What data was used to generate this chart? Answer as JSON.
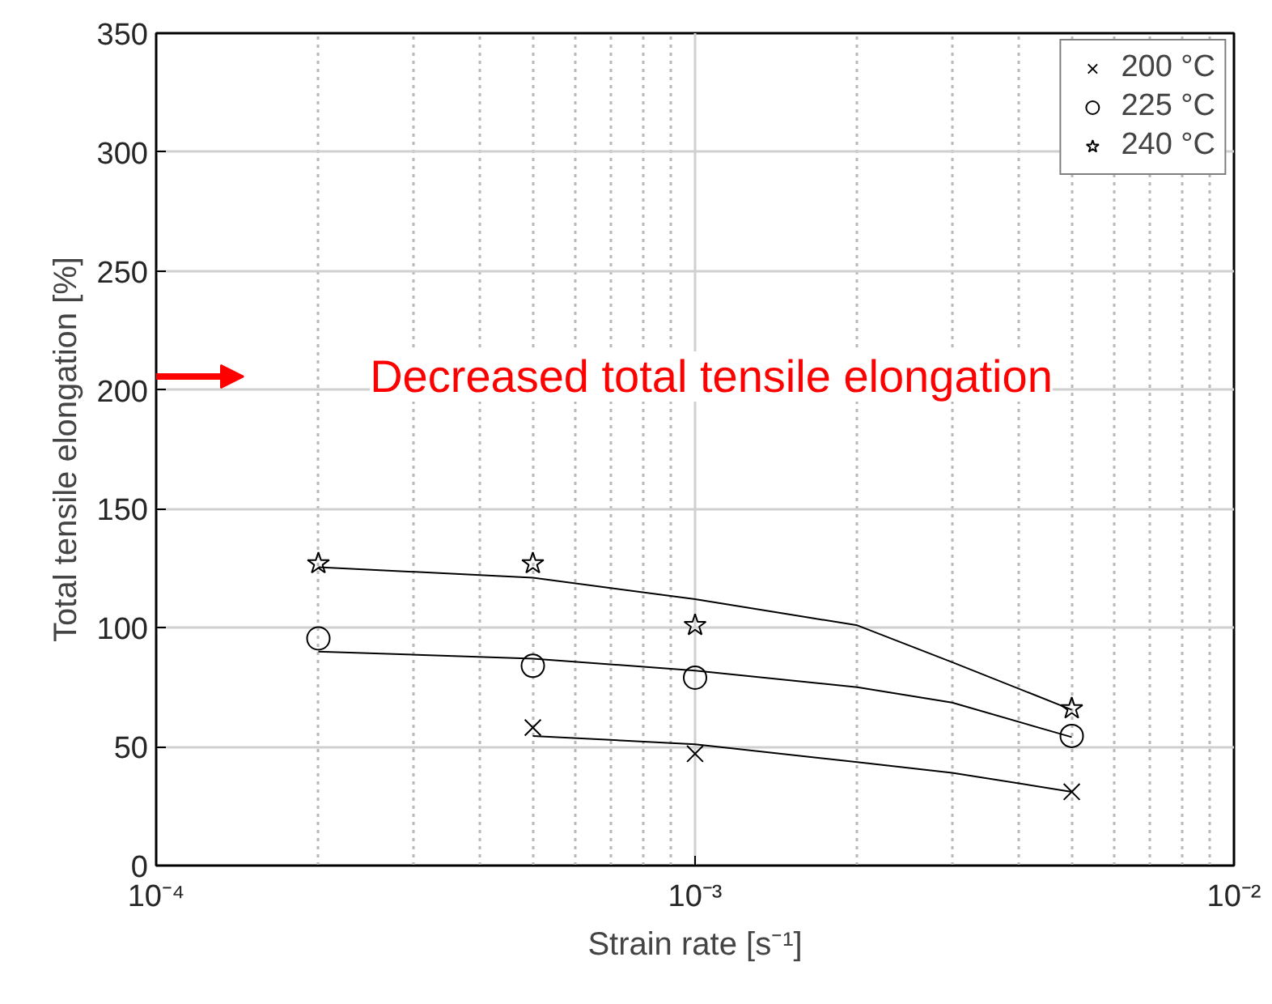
{
  "chart_data": {
    "type": "scatter",
    "xlabel": "Strain rate [s⁻¹]",
    "ylabel": "Total tensile elongation [%]",
    "log": "x",
    "grid": true,
    "legend": "top right",
    "xlim": [
      0.0001,
      0.01
    ],
    "xticks": [
      {
        "value": 0.0001,
        "label": "10⁻⁴"
      },
      {
        "value": 0.001,
        "label": "10⁻³"
      },
      {
        "value": 0.01,
        "label": "10⁻²"
      }
    ],
    "ylim": [
      0,
      350
    ],
    "yticks": [
      0,
      50,
      100,
      150,
      200,
      250,
      300,
      350
    ],
    "annotations": [
      "Decreased total tensile elongation"
    ],
    "series": [
      {
        "name": "200 °C",
        "color": "#000000",
        "marker": "cross",
        "x": [
          0.0005,
          0.001,
          0.005
        ],
        "values": [
          58,
          47,
          31
        ]
      },
      {
        "name": "225 °C",
        "color": "#000000",
        "marker": "circle",
        "x": [
          0.0002,
          0.0005,
          0.001,
          0.005
        ],
        "values": [
          95.5,
          84,
          79,
          54.5
        ]
      },
      {
        "name": "240 °C",
        "color": "#000000",
        "marker": "star",
        "x": [
          0.0002,
          0.0005,
          0.001,
          0.005
        ],
        "values": [
          127,
          127,
          101,
          66
        ]
      },
      {
        "type": "line",
        "color": "#000000",
        "marker": "none",
        "x": [
          0.0005,
          0.001,
          0.002,
          0.003,
          0.005
        ],
        "values": [
          54.5,
          51,
          43.5,
          39,
          31
        ]
      },
      {
        "type": "line",
        "color": "#000000",
        "marker": "none",
        "x": [
          0.0002,
          0.0005,
          0.001,
          0.002,
          0.003,
          0.005
        ],
        "values": [
          90,
          87,
          82,
          75,
          68.5,
          54
        ]
      },
      {
        "type": "line",
        "color": "#000000",
        "marker": "none",
        "x": [
          0.0002,
          0.0005,
          0.001,
          0.002,
          0.003,
          0.005
        ],
        "values": [
          125.5,
          121,
          112,
          101,
          85.5,
          65.5
        ]
      }
    ]
  }
}
